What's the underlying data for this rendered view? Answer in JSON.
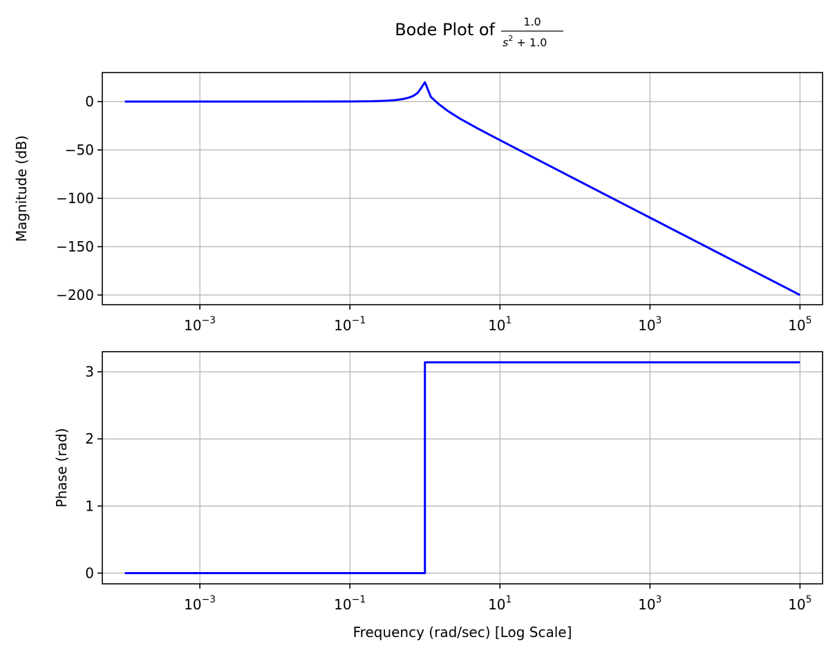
{
  "figure": {
    "title_prefix": "Bode Plot of",
    "title_fraction": {
      "numerator": "1.0",
      "denominator_var": "s",
      "denominator_power": "2",
      "denominator_rest": " + 1.0"
    }
  },
  "chart_data": [
    {
      "type": "line",
      "panel": "magnitude",
      "title": "",
      "xlabel": "",
      "ylabel": "Magnitude (dB)",
      "x_scale": "log",
      "xlim": [
        5e-05,
        200000
      ],
      "ylim": [
        -210,
        30
      ],
      "x_ticks": [
        {
          "value": 0.001,
          "base": "10",
          "exponent": "−3"
        },
        {
          "value": 0.1,
          "base": "10",
          "exponent": "−1"
        },
        {
          "value": 10,
          "base": "10",
          "exponent": "1"
        },
        {
          "value": 1000,
          "base": "10",
          "exponent": "3"
        },
        {
          "value": 100000,
          "base": "10",
          "exponent": "5"
        }
      ],
      "y_ticks": [
        {
          "value": 0,
          "label": "0"
        },
        {
          "value": -50,
          "label": "−50"
        },
        {
          "value": -100,
          "label": "−100"
        },
        {
          "value": -150,
          "label": "−150"
        },
        {
          "value": -200,
          "label": "−200"
        }
      ],
      "grid": true,
      "line_color": "#0000ff",
      "series": [
        {
          "x": [
            0.0001,
            0.001,
            0.01,
            0.1,
            0.2,
            0.3,
            0.4,
            0.5,
            0.6,
            0.7,
            0.8,
            0.9,
            1.0,
            1.2,
            1.5,
            2,
            3,
            5,
            10,
            100,
            1000,
            10000,
            100000
          ],
          "y": [
            0,
            0,
            0,
            0.09,
            0.35,
            0.82,
            1.51,
            2.5,
            3.88,
            5.85,
            8.9,
            14.5,
            20,
            4.8,
            -2.1,
            -9.5,
            -18.1,
            -27.6,
            -39.9,
            -80,
            -120,
            -160,
            -200
          ]
        }
      ]
    },
    {
      "type": "line",
      "panel": "phase",
      "title": "",
      "xlabel": "Frequency (rad/sec) [Log Scale]",
      "ylabel": "Phase (rad)",
      "x_scale": "log",
      "xlim": [
        5e-05,
        200000
      ],
      "ylim": [
        -0.16,
        3.3
      ],
      "x_ticks": [
        {
          "value": 0.001,
          "base": "10",
          "exponent": "−3"
        },
        {
          "value": 0.1,
          "base": "10",
          "exponent": "−1"
        },
        {
          "value": 10,
          "base": "10",
          "exponent": "1"
        },
        {
          "value": 1000,
          "base": "10",
          "exponent": "3"
        },
        {
          "value": 100000,
          "base": "10",
          "exponent": "5"
        }
      ],
      "y_ticks": [
        {
          "value": 0,
          "label": "0"
        },
        {
          "value": 1,
          "label": "1"
        },
        {
          "value": 2,
          "label": "2"
        },
        {
          "value": 3,
          "label": "3"
        }
      ],
      "grid": true,
      "line_color": "#0000ff",
      "series": [
        {
          "x": [
            0.0001,
            1.0,
            1.0,
            100000
          ],
          "y": [
            0,
            0,
            3.1416,
            3.1416
          ]
        }
      ]
    }
  ]
}
